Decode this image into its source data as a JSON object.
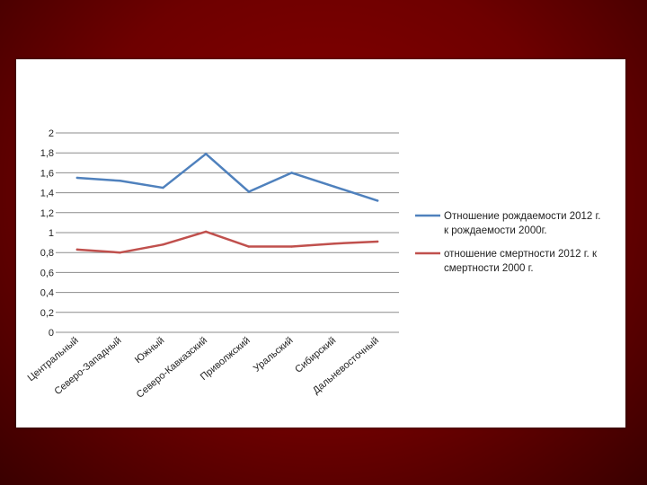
{
  "chart_data": {
    "type": "line",
    "categories": [
      "Центральный",
      "Северо-Западный",
      "Южный",
      "Северо-Кавказский",
      "Приволжский",
      "Уральский",
      "Сибирский",
      "Дальневосточный"
    ],
    "series": [
      {
        "name": "Отношение рождаемости 2012 г. к рождаемости 2000г.",
        "legend_lines": [
          "Отношение рождаемости 2012 г.",
          "к рождаемости 2000г."
        ],
        "color": "#4f81bd",
        "values": [
          1.55,
          1.52,
          1.45,
          1.79,
          1.41,
          1.6,
          1.46,
          1.32
        ]
      },
      {
        "name": "отношение смертности 2012 г. к смертности 2000 г.",
        "legend_lines": [
          "отношение смертности 2012 г. к",
          "смертности 2000 г."
        ],
        "color": "#c0504d",
        "values": [
          0.83,
          0.8,
          0.88,
          1.01,
          0.86,
          0.86,
          0.89,
          0.91
        ]
      }
    ],
    "ylim": [
      0,
      2
    ],
    "yticks": [
      "0",
      "0,2",
      "0,4",
      "0,6",
      "0,8",
      "1",
      "1,2",
      "1,4",
      "1,6",
      "1,8",
      "2"
    ],
    "grid": true,
    "legend_position": "right",
    "title": "",
    "xlabel": "",
    "ylabel": ""
  }
}
